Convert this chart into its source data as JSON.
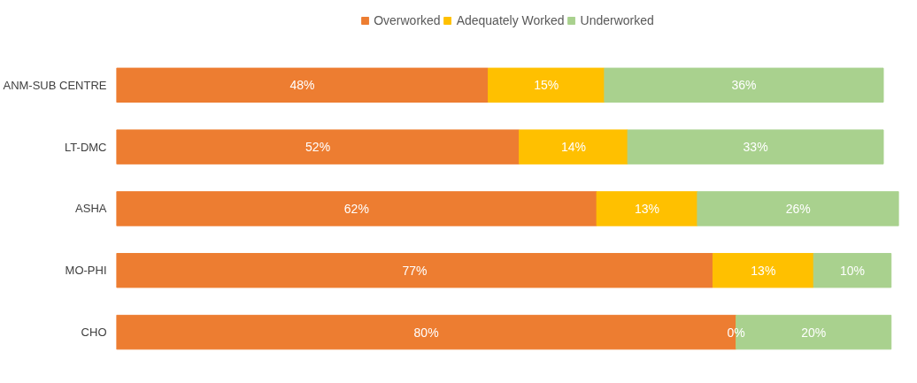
{
  "chart_data": {
    "type": "bar",
    "orientation": "horizontal",
    "stacked": true,
    "categories": [
      "ANM-SUB CENTRE",
      "LT-DMC",
      "ASHA",
      "MO-PHI",
      "CHO"
    ],
    "series": [
      {
        "name": "Overworked",
        "color": "#ed7d31",
        "values": [
          48,
          52,
          62,
          77,
          80
        ],
        "value_labels": [
          "48%",
          "52%",
          "62%",
          "77%",
          "80%"
        ]
      },
      {
        "name": "Adequately Worked",
        "color": "#ffc000",
        "values": [
          15,
          14,
          13,
          13,
          0
        ],
        "value_labels": [
          "15%",
          "14%",
          "13%",
          "13%",
          "0%"
        ]
      },
      {
        "name": "Underworked",
        "color": "#a9d18e",
        "values": [
          36,
          33,
          26,
          10,
          20
        ],
        "value_labels": [
          "36%",
          "33%",
          "26%",
          "10%",
          "20%"
        ]
      }
    ],
    "tick_labels": "y",
    "legend": "top",
    "grid": false
  }
}
